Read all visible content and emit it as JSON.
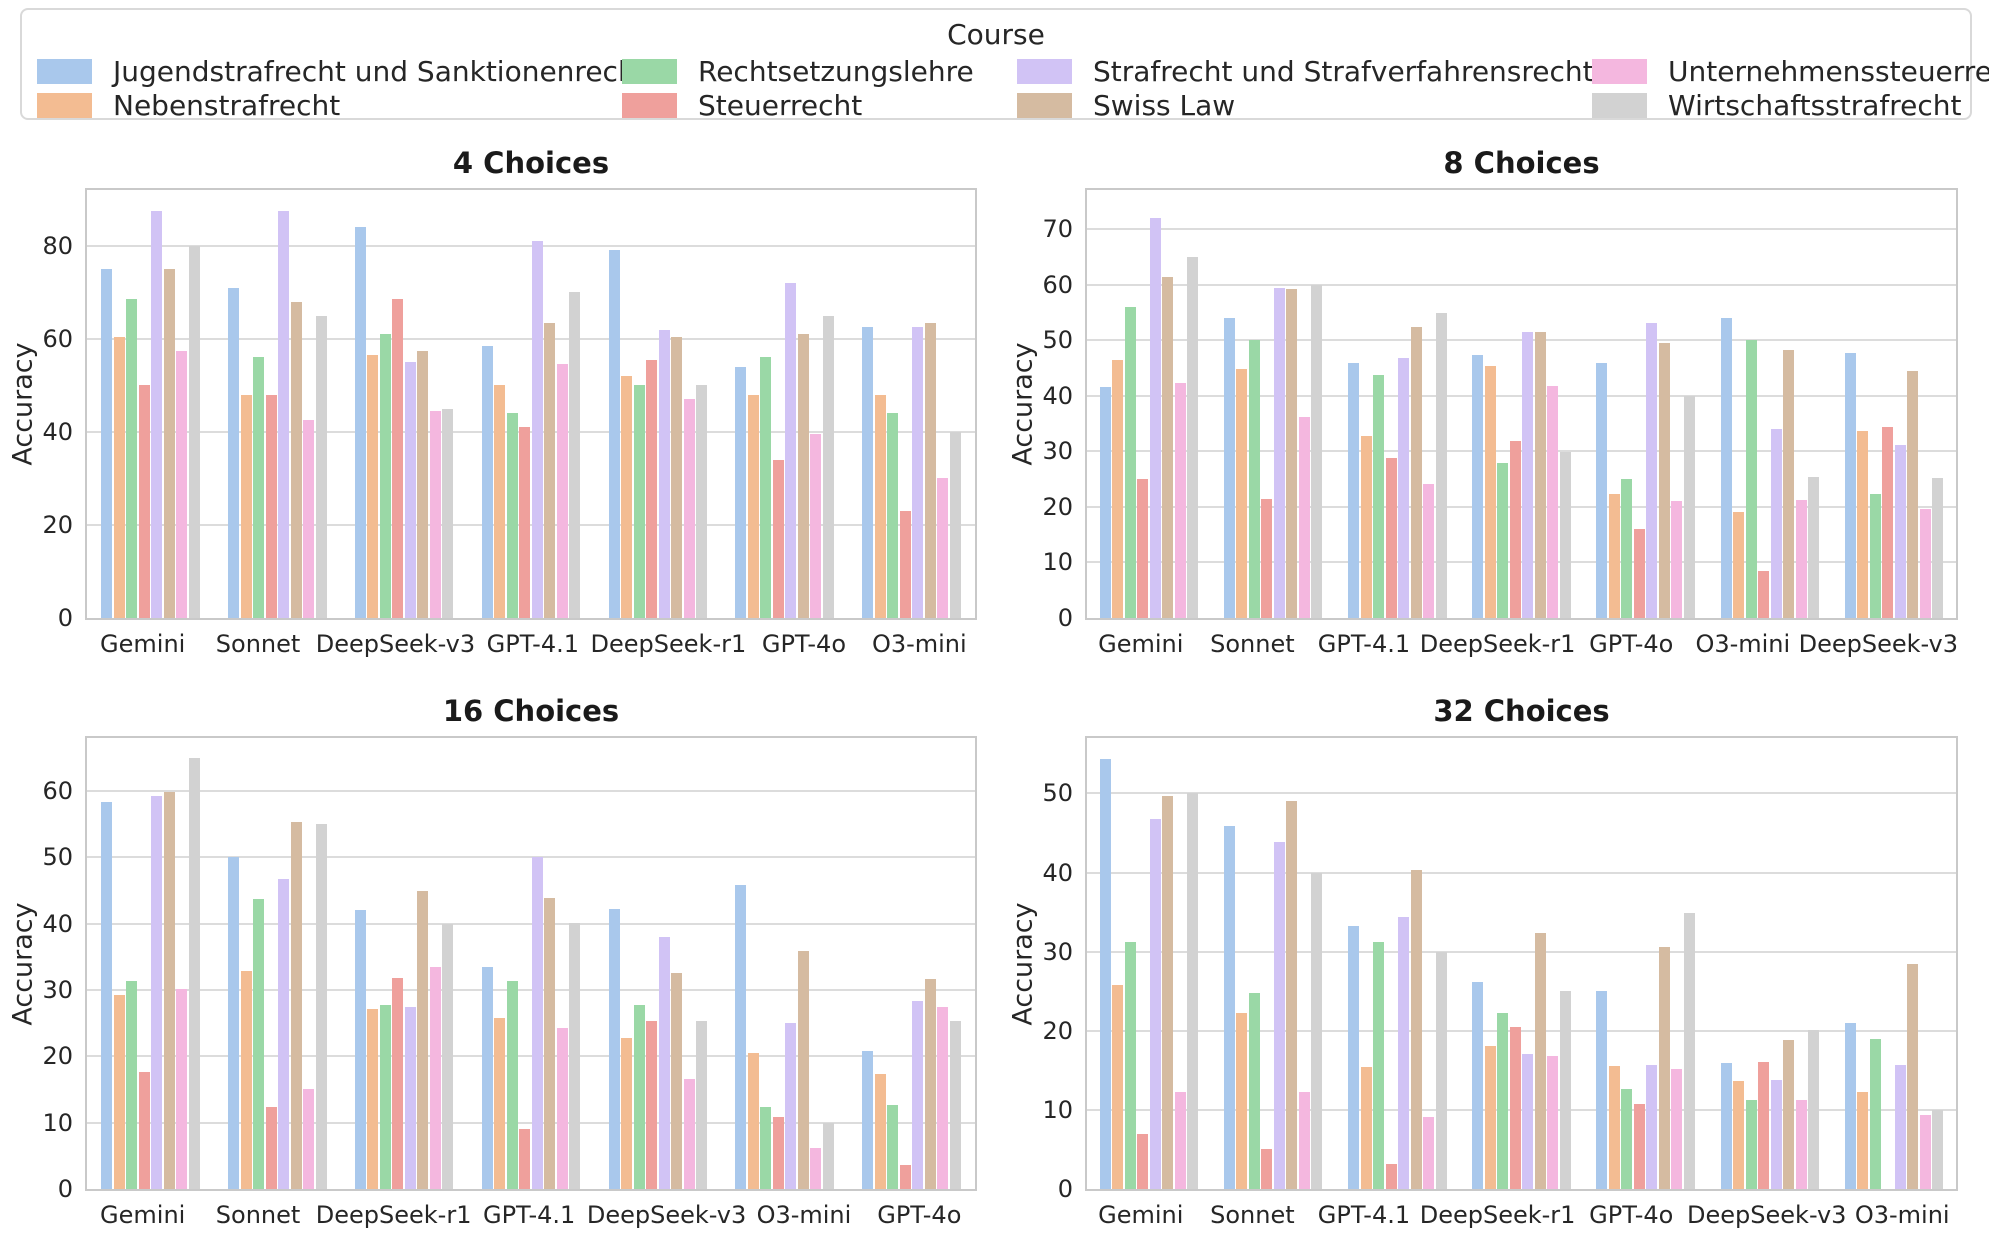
{
  "legend": {
    "title": "Course",
    "items": [
      {
        "label": "Jugendstrafrecht und Sanktionenrecht",
        "color": "#a9c8ec"
      },
      {
        "label": "Nebenstrafrecht",
        "color": "#f3bc92"
      },
      {
        "label": "Rechtsetzungslehre",
        "color": "#9ad8a6"
      },
      {
        "label": "Steuerrecht",
        "color": "#efa09c"
      },
      {
        "label": "Strafrecht und Strafverfahrensrecht",
        "color": "#d1c3f5"
      },
      {
        "label": "Swiss Law",
        "color": "#d5bba1"
      },
      {
        "label": "Unternehmenssteuerrecht",
        "color": "#f4b7df"
      },
      {
        "label": "Wirtschaftsstrafrecht",
        "color": "#d2d2d2"
      }
    ]
  },
  "chart_data": [
    {
      "type": "bar",
      "title": "4 Choices",
      "ylabel": "Accuracy",
      "ylim": [
        0,
        92
      ],
      "yticks": [
        0,
        20,
        40,
        60,
        80
      ],
      "grid": true,
      "categories": [
        "Gemini",
        "Sonnet",
        "DeepSeek-v3",
        "GPT-4.1",
        "DeepSeek-r1",
        "GPT-4o",
        "O3-mini"
      ],
      "series": [
        {
          "name": "Jugendstrafrecht und Sanktionenrecht",
          "values": [
            75,
            71,
            84,
            58.5,
            79,
            54,
            62.5
          ]
        },
        {
          "name": "Nebenstrafrecht",
          "values": [
            60.5,
            48,
            56.5,
            50,
            52,
            48,
            48
          ]
        },
        {
          "name": "Rechtsetzungslehre",
          "values": [
            68.5,
            56,
            61,
            44,
            50,
            56,
            44
          ]
        },
        {
          "name": "Steuerrecht",
          "values": [
            50,
            48,
            68.5,
            41,
            55.5,
            34,
            23
          ]
        },
        {
          "name": "Strafrecht und Strafverfahrensrecht",
          "values": [
            87.5,
            87.5,
            55,
            81,
            62,
            72,
            62.5
          ]
        },
        {
          "name": "Swiss Law",
          "values": [
            75,
            68,
            57.5,
            63.5,
            60.5,
            61,
            63.5
          ]
        },
        {
          "name": "Unternehmenssteuerrecht",
          "values": [
            57.5,
            42.5,
            44.5,
            54.5,
            47,
            39.5,
            30
          ]
        },
        {
          "name": "Wirtschaftsstrafrecht",
          "values": [
            80,
            65,
            45,
            70,
            50,
            65,
            40
          ]
        }
      ]
    },
    {
      "type": "bar",
      "title": "8 Choices",
      "ylabel": "Accuracy",
      "ylim": [
        0,
        77
      ],
      "yticks": [
        0,
        10,
        20,
        30,
        40,
        50,
        60,
        70
      ],
      "grid": true,
      "categories": [
        "Gemini",
        "Sonnet",
        "GPT-4.1",
        "DeepSeek-r1",
        "GPT-4o",
        "O3-mini",
        "DeepSeek-v3"
      ],
      "series": [
        {
          "name": "Jugendstrafrecht und Sanktionenrecht",
          "values": [
            41.5,
            54,
            45.8,
            47.4,
            45.8,
            54,
            47.6
          ]
        },
        {
          "name": "Nebenstrafrecht",
          "values": [
            46.5,
            44.8,
            32.8,
            45.4,
            22.4,
            19,
            33.6
          ]
        },
        {
          "name": "Rechtsetzungslehre",
          "values": [
            56,
            50,
            43.8,
            27.9,
            25,
            50,
            22.4
          ]
        },
        {
          "name": "Steuerrecht",
          "values": [
            25,
            21.5,
            28.7,
            31.8,
            16,
            8.5,
            34.3
          ]
        },
        {
          "name": "Strafrecht und Strafverfahrensrecht",
          "values": [
            72,
            59.3,
            46.8,
            51.5,
            53,
            34,
            31.2
          ]
        },
        {
          "name": "Swiss Law",
          "values": [
            61.3,
            59.2,
            52.4,
            51.5,
            49.5,
            48.3,
            44.4
          ]
        },
        {
          "name": "Unternehmenssteuerrecht",
          "values": [
            42.3,
            36.2,
            24.2,
            41.8,
            21,
            21.3,
            19.6
          ]
        },
        {
          "name": "Wirtschaftsstrafrecht",
          "values": [
            65,
            60,
            54.8,
            29.9,
            40,
            25.3,
            25.2
          ]
        }
      ]
    },
    {
      "type": "bar",
      "title": "16 Choices",
      "ylabel": "Accuracy",
      "ylim": [
        0,
        68
      ],
      "yticks": [
        0,
        10,
        20,
        30,
        40,
        50,
        60
      ],
      "grid": true,
      "categories": [
        "Gemini",
        "Sonnet",
        "DeepSeek-r1",
        "GPT-4.1",
        "DeepSeek-v3",
        "O3-mini",
        "GPT-4o"
      ],
      "series": [
        {
          "name": "Jugendstrafrecht und Sanktionenrecht",
          "values": [
            58.3,
            50,
            42,
            33.4,
            42.2,
            45.8,
            20.8
          ]
        },
        {
          "name": "Nebenstrafrecht",
          "values": [
            29.3,
            32.8,
            27.2,
            25.8,
            22.7,
            20.5,
            17.3
          ]
        },
        {
          "name": "Rechtsetzungslehre",
          "values": [
            31.3,
            43.8,
            27.7,
            31.3,
            27.7,
            12.4,
            12.6
          ]
        },
        {
          "name": "Steuerrecht",
          "values": [
            17.7,
            12.4,
            31.8,
            9,
            25.3,
            10.9,
            3.6
          ]
        },
        {
          "name": "Strafrecht und Strafverfahrensrecht",
          "values": [
            59.3,
            46.8,
            27.5,
            50,
            38,
            25,
            28.3
          ]
        },
        {
          "name": "Swiss Law",
          "values": [
            59.8,
            55.4,
            44.9,
            43.9,
            32.5,
            35.9,
            31.6
          ]
        },
        {
          "name": "Unternehmenssteuerrecht",
          "values": [
            30.2,
            15.1,
            33.4,
            24.3,
            16.6,
            6.2,
            27.4
          ]
        },
        {
          "name": "Wirtschaftsstrafrecht",
          "values": [
            65,
            55,
            40,
            40.1,
            25.3,
            10,
            25.4
          ]
        }
      ]
    },
    {
      "type": "bar",
      "title": "32 Choices",
      "ylabel": "Accuracy",
      "ylim": [
        0,
        57
      ],
      "yticks": [
        0,
        10,
        20,
        30,
        40,
        50
      ],
      "grid": true,
      "categories": [
        "Gemini",
        "Sonnet",
        "GPT-4.1",
        "DeepSeek-r1",
        "GPT-4o",
        "DeepSeek-v3",
        "O3-mini"
      ],
      "series": [
        {
          "name": "Jugendstrafrecht und Sanktionenrecht",
          "values": [
            54.3,
            45.9,
            33.3,
            26.2,
            25,
            15.9,
            21
          ]
        },
        {
          "name": "Nebenstrafrecht",
          "values": [
            25.8,
            22.3,
            15.4,
            18.1,
            15.5,
            13.7,
            12.2
          ]
        },
        {
          "name": "Rechtsetzungslehre",
          "values": [
            31.2,
            24.8,
            31.2,
            22.2,
            12.6,
            11.3,
            18.9
          ]
        },
        {
          "name": "Steuerrecht",
          "values": [
            7,
            5,
            3.2,
            20.5,
            10.7,
            16,
            0
          ]
        },
        {
          "name": "Strafrecht und Strafverfahrensrecht",
          "values": [
            46.8,
            43.8,
            34.4,
            17.1,
            15.7,
            13.8,
            15.7
          ]
        },
        {
          "name": "Swiss Law",
          "values": [
            49.7,
            49,
            40.3,
            32.3,
            30.6,
            18.8,
            28.4
          ]
        },
        {
          "name": "Unternehmenssteuerrecht",
          "values": [
            12.2,
            12.2,
            9.1,
            16.8,
            15.2,
            11.3,
            9.3
          ]
        },
        {
          "name": "Wirtschaftsstrafrecht",
          "values": [
            50,
            40,
            30,
            25,
            34.9,
            20.1,
            10
          ]
        }
      ]
    }
  ]
}
